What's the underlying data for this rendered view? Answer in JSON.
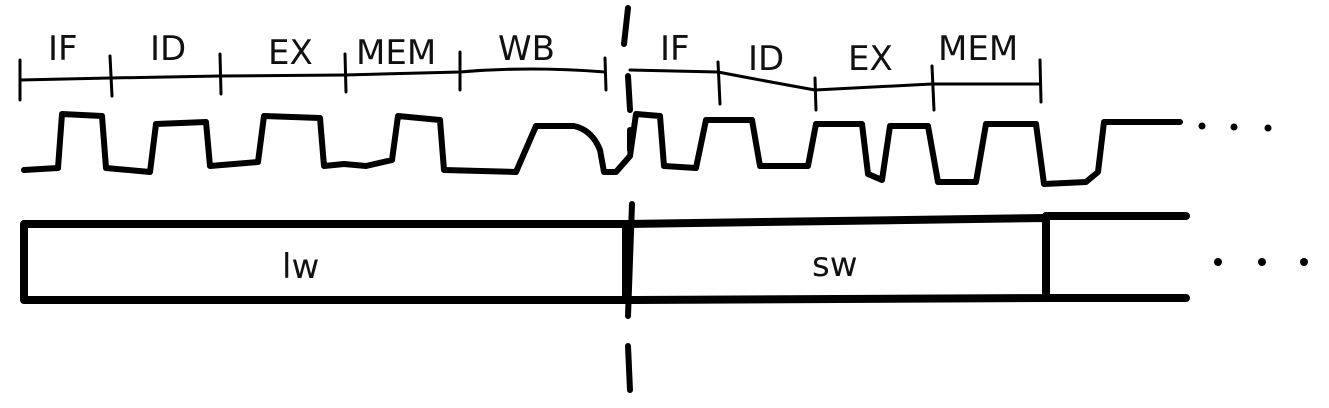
{
  "diagram": {
    "lw_stages": [
      {
        "label": "IF"
      },
      {
        "label": "ID"
      },
      {
        "label": "EX"
      },
      {
        "label": "MEM"
      },
      {
        "label": "WB"
      }
    ],
    "sw_stages": [
      {
        "label": "IF"
      },
      {
        "label": "ID"
      },
      {
        "label": "EX"
      },
      {
        "label": "MEM"
      }
    ],
    "instructions": [
      {
        "label": "lw"
      },
      {
        "label": "sw"
      }
    ],
    "colors": {
      "ink": "#000000",
      "background": "#ffffff"
    }
  }
}
